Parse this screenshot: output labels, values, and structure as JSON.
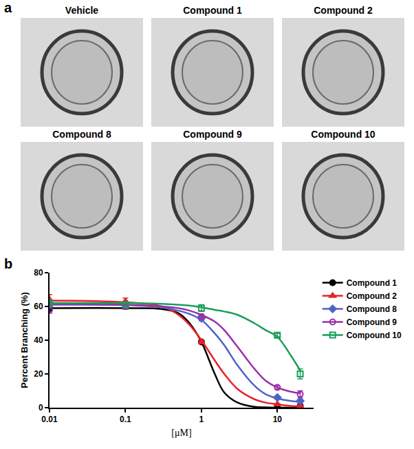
{
  "panel_a": {
    "label": "a",
    "images": [
      "Vehicle",
      "Compound 1",
      "Compound 2",
      "Compound 8",
      "Compound 9",
      "Compound 10"
    ]
  },
  "panel_b_label": "b",
  "chart_data": {
    "type": "scatter",
    "x_label": "[μM]",
    "y_label": "Percent Branching (%)",
    "log": "x",
    "grid": false,
    "legend": "right",
    "x": [
      0.01,
      0.1,
      1,
      10,
      20
    ],
    "xlim": [
      0.01,
      30
    ],
    "xticks": [
      0.01,
      0.1,
      1,
      10
    ],
    "ylim": [
      0,
      80
    ],
    "yticks": [
      0,
      20,
      40,
      60,
      80
    ],
    "series": [
      {
        "name": "Compound 1",
        "color": "#000000",
        "marker": "circle",
        "values": [
          59,
          60,
          39,
          0.5,
          1
        ],
        "errors": [
          2,
          1.5,
          1,
          0.5,
          0.5
        ],
        "fit": {
          "x": [
            0.01,
            0.1,
            0.3,
            0.5,
            0.7,
            1,
            1.5,
            2,
            3,
            5,
            7,
            10,
            15,
            20
          ],
          "values": [
            59,
            59,
            58.5,
            56,
            50,
            39,
            20,
            9,
            3,
            0.5,
            0.2,
            0,
            0,
            0
          ]
        }
      },
      {
        "name": "Compound 2",
        "color": "#e8202a",
        "marker": "triangle-up",
        "values": [
          64,
          63,
          39,
          2,
          1
        ],
        "errors": [
          3,
          2,
          1,
          0.5,
          0.5
        ],
        "fit": {
          "x": [
            0.01,
            0.1,
            0.3,
            0.5,
            0.7,
            1,
            1.5,
            2,
            3,
            5,
            7,
            10,
            15,
            20
          ],
          "values": [
            63.5,
            62.5,
            60,
            55,
            49,
            40,
            28,
            20,
            11,
            5,
            3,
            2,
            1,
            0.8
          ]
        }
      },
      {
        "name": "Compound 8",
        "color": "#4f63c7",
        "marker": "diamond",
        "values": [
          61,
          61,
          53,
          6,
          4
        ],
        "errors": [
          2,
          1.5,
          1.5,
          0.5,
          1
        ],
        "fit": {
          "x": [
            0.01,
            0.1,
            0.3,
            0.5,
            0.7,
            1,
            1.5,
            2,
            3,
            5,
            7,
            10,
            15,
            20
          ],
          "values": [
            61,
            60.8,
            59.5,
            57.5,
            55.5,
            52,
            44,
            37,
            25,
            13,
            8,
            5.5,
            4,
            3.5
          ]
        }
      },
      {
        "name": "Compound 9",
        "color": "#9b30a8",
        "marker": "circle-open",
        "values": [
          58,
          60,
          54,
          12,
          8
        ],
        "errors": [
          2,
          1.5,
          1.5,
          1,
          2
        ],
        "fit": {
          "x": [
            0.01,
            0.1,
            0.3,
            0.5,
            0.7,
            1,
            1.5,
            2,
            3,
            5,
            7,
            10,
            15,
            20
          ],
          "values": [
            61.5,
            61,
            60,
            59,
            57.5,
            55,
            51,
            46,
            36,
            23,
            16,
            12,
            9.5,
            8.5
          ]
        }
      },
      {
        "name": "Compound 10",
        "color": "#1b9e5a",
        "marker": "square-open",
        "values": [
          62,
          61,
          59,
          43,
          20
        ],
        "errors": [
          2,
          1.5,
          2,
          1,
          3
        ],
        "fit": {
          "x": [
            0.01,
            0.1,
            0.3,
            0.5,
            0.7,
            1,
            1.5,
            2,
            3,
            5,
            7,
            10,
            15,
            20
          ],
          "values": [
            62,
            62,
            61.5,
            61,
            60.5,
            59.5,
            58,
            57,
            55,
            50,
            46,
            42,
            31,
            22
          ]
        }
      }
    ]
  }
}
